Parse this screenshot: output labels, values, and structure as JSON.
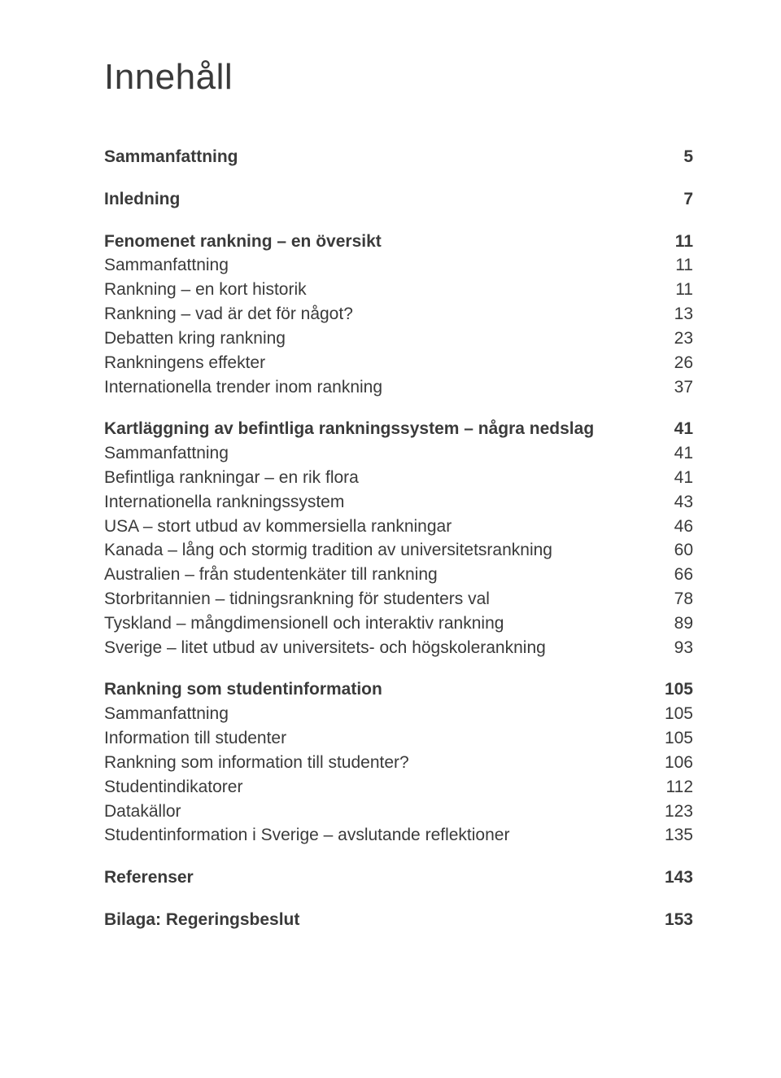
{
  "title": "Innehåll",
  "entries": [
    {
      "label": "Sammanfattning",
      "page": "5",
      "head": true,
      "first": true
    },
    {
      "label": "Inledning",
      "page": "7",
      "head": true
    },
    {
      "label": "Fenomenet rankning – en översikt",
      "page": "11",
      "head": true
    },
    {
      "label": "Sammanfattning",
      "page": "11"
    },
    {
      "label": "Rankning – en kort historik",
      "page": "11"
    },
    {
      "label": "Rankning – vad är det för något?",
      "page": "13"
    },
    {
      "label": "Debatten kring rankning",
      "page": "23"
    },
    {
      "label": "Rankningens effekter",
      "page": "26"
    },
    {
      "label": "Internationella trender inom rankning",
      "page": "37"
    },
    {
      "label": "Kartläggning av befintliga rankningssystem – några nedslag",
      "page": "41",
      "head": true
    },
    {
      "label": "Sammanfattning",
      "page": "41"
    },
    {
      "label": "Befintliga rankningar – en rik flora",
      "page": "41"
    },
    {
      "label": "Internationella rankningssystem",
      "page": "43"
    },
    {
      "label": "USA – stort utbud av kommersiella rankningar",
      "page": "46"
    },
    {
      "label": "Kanada – lång och stormig tradition av universitetsrankning",
      "page": "60"
    },
    {
      "label": "Australien – från studentenkäter till rankning",
      "page": "66"
    },
    {
      "label": "Storbritannien – tidningsrankning för studenters val",
      "page": "78"
    },
    {
      "label": "Tyskland – mångdimensionell och interaktiv rankning",
      "page": "89"
    },
    {
      "label": "Sverige – litet utbud av universitets- och högskolerankning",
      "page": "93"
    },
    {
      "label": "Rankning som studentinformation",
      "page": "105",
      "head": true
    },
    {
      "label": "Sammanfattning",
      "page": "105"
    },
    {
      "label": "Information till studenter",
      "page": "105"
    },
    {
      "label": "Rankning som information till studenter?",
      "page": "106"
    },
    {
      "label": "Studentindikatorer",
      "page": "112"
    },
    {
      "label": "Datakällor",
      "page": "123"
    },
    {
      "label": "Studentinformation i Sverige – avslutande reflektioner",
      "page": "135"
    },
    {
      "label": "Referenser",
      "page": "143",
      "head": true
    },
    {
      "label": "Bilaga: Regeringsbeslut",
      "page": "153",
      "head": true
    }
  ]
}
